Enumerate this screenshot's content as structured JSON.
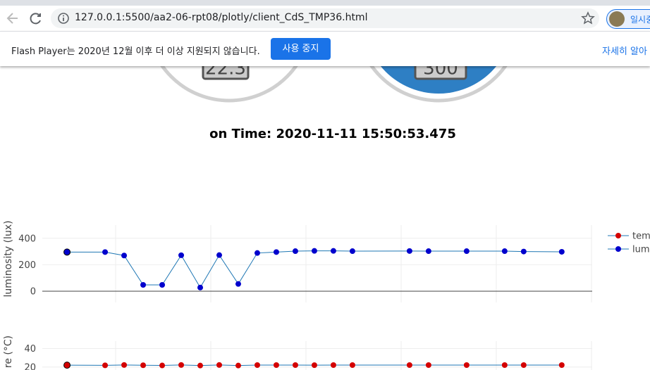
{
  "browser": {
    "url": "127.0.0.1:5500/aa2-06-rpt08/plotly/client_CdS_TMP36.html",
    "profile": "일시중"
  },
  "infobar": {
    "message": "Flash Player는 2020년 12월 이후 더 이상 지원되지 않습니다.",
    "button": "사용 중지",
    "link": "자세히 알아"
  },
  "gauges": [
    {
      "value": "22.3"
    },
    {
      "value": "300"
    }
  ],
  "time_label": "on Time: 2020-11-11 15:50:53.475",
  "chart_data": [
    {
      "type": "line",
      "y_label": "luminosity (lux)",
      "x": [
        0,
        2,
        3,
        4,
        5,
        6,
        7,
        8,
        9,
        10,
        11,
        12,
        13,
        14,
        15,
        18,
        19,
        21,
        23,
        24,
        26
      ],
      "series": [
        {
          "name": "lumi",
          "color": "#1f77b4",
          "marker_color": "#0000cd",
          "values": [
            296,
            296,
            270,
            48,
            48,
            272,
            28,
            273,
            55,
            289,
            296,
            303,
            305,
            305,
            303,
            304,
            303,
            303,
            303,
            300,
            298
          ]
        }
      ],
      "xlim": [
        -1.3,
        27.6
      ],
      "ylim": [
        -85,
        500
      ],
      "yticks": [
        0,
        200,
        400
      ],
      "grid": true
    },
    {
      "type": "line",
      "y_label": "re (°C)",
      "x": [
        0,
        2,
        3,
        4,
        5,
        6,
        7,
        8,
        9,
        10,
        11,
        12,
        13,
        14,
        15,
        18,
        19,
        21,
        23,
        24,
        26
      ],
      "series": [
        {
          "name": "tem",
          "color": "#1f77b4",
          "marker_color": "#d40000",
          "values": [
            22,
            21.8,
            22.2,
            21.9,
            21.7,
            22.2,
            21.6,
            22.2,
            21.6,
            22.1,
            22.1,
            22.1,
            22,
            22.1,
            22.1,
            22.1,
            22.1,
            22.1,
            22.1,
            22.1,
            22.1
          ]
        }
      ],
      "xlim": [
        -1.3,
        27.6
      ],
      "ylim": [
        0,
        48
      ],
      "yticks": [
        20,
        40
      ],
      "grid": true
    }
  ]
}
